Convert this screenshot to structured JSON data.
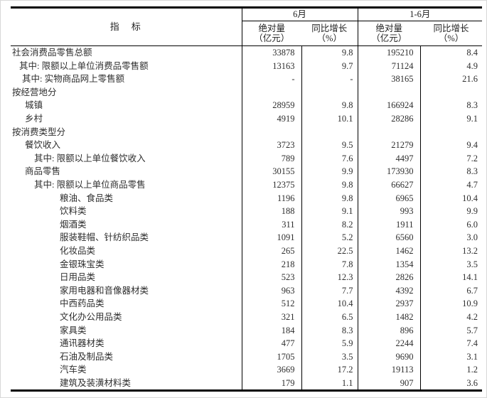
{
  "header": {
    "indicator": "指　标",
    "june_group": "6月",
    "jan_june_group": "1-6月",
    "absolute_label": "绝对量",
    "absolute_unit": "（亿元）",
    "yoy_label": "同比增长",
    "yoy_unit": "（%）"
  },
  "rows": [
    {
      "label": "社会消费品零售总额",
      "indent": 0,
      "june_abs": "33878",
      "june_yoy": "9.8",
      "cum_abs": "195210",
      "cum_yoy": "8.4"
    },
    {
      "label": "其中: 限额以上单位消费品零售额",
      "indent": 1,
      "june_abs": "13163",
      "june_yoy": "9.7",
      "cum_abs": "71124",
      "cum_yoy": "4.9"
    },
    {
      "label": "其中: 实物商品网上零售额",
      "indent": 2,
      "june_abs": "-",
      "june_yoy": "-",
      "cum_abs": "38165",
      "cum_yoy": "21.6"
    },
    {
      "label": "按经营地分",
      "indent": 0,
      "june_abs": "",
      "june_yoy": "",
      "cum_abs": "",
      "cum_yoy": ""
    },
    {
      "label": "城镇",
      "indent": 3,
      "june_abs": "28959",
      "june_yoy": "9.8",
      "cum_abs": "166924",
      "cum_yoy": "8.3"
    },
    {
      "label": "乡村",
      "indent": 3,
      "june_abs": "4919",
      "june_yoy": "10.1",
      "cum_abs": "28286",
      "cum_yoy": "9.1"
    },
    {
      "label": "按消费类型分",
      "indent": 0,
      "june_abs": "",
      "june_yoy": "",
      "cum_abs": "",
      "cum_yoy": ""
    },
    {
      "label": "餐饮收入",
      "indent": 3,
      "june_abs": "3723",
      "june_yoy": "9.5",
      "cum_abs": "21279",
      "cum_yoy": "9.4"
    },
    {
      "label": "其中: 限额以上单位餐饮收入",
      "indent": 4,
      "june_abs": "789",
      "june_yoy": "7.6",
      "cum_abs": "4497",
      "cum_yoy": "7.2"
    },
    {
      "label": "商品零售",
      "indent": 3,
      "june_abs": "30155",
      "june_yoy": "9.9",
      "cum_abs": "173930",
      "cum_yoy": "8.3"
    },
    {
      "label": "其中: 限额以上单位商品零售",
      "indent": 4,
      "june_abs": "12375",
      "june_yoy": "9.8",
      "cum_abs": "66627",
      "cum_yoy": "4.7"
    },
    {
      "label": "粮油、食品类",
      "indent": 5,
      "june_abs": "1196",
      "june_yoy": "9.8",
      "cum_abs": "6965",
      "cum_yoy": "10.4"
    },
    {
      "label": "饮料类",
      "indent": 5,
      "june_abs": "188",
      "june_yoy": "9.1",
      "cum_abs": "993",
      "cum_yoy": "9.9"
    },
    {
      "label": "烟酒类",
      "indent": 5,
      "june_abs": "311",
      "june_yoy": "8.2",
      "cum_abs": "1911",
      "cum_yoy": "6.0"
    },
    {
      "label": "服装鞋帽、针纺织品类",
      "indent": 5,
      "june_abs": "1091",
      "june_yoy": "5.2",
      "cum_abs": "6560",
      "cum_yoy": "3.0"
    },
    {
      "label": "化妆品类",
      "indent": 5,
      "june_abs": "265",
      "june_yoy": "22.5",
      "cum_abs": "1462",
      "cum_yoy": "13.2"
    },
    {
      "label": "金银珠宝类",
      "indent": 5,
      "june_abs": "218",
      "june_yoy": "7.8",
      "cum_abs": "1354",
      "cum_yoy": "3.5"
    },
    {
      "label": "日用品类",
      "indent": 5,
      "june_abs": "523",
      "june_yoy": "12.3",
      "cum_abs": "2826",
      "cum_yoy": "14.1"
    },
    {
      "label": "家用电器和音像器材类",
      "indent": 5,
      "june_abs": "963",
      "june_yoy": "7.7",
      "cum_abs": "4392",
      "cum_yoy": "6.7"
    },
    {
      "label": "中西药品类",
      "indent": 5,
      "june_abs": "512",
      "june_yoy": "10.4",
      "cum_abs": "2937",
      "cum_yoy": "10.9"
    },
    {
      "label": "文化办公用品类",
      "indent": 5,
      "june_abs": "321",
      "june_yoy": "6.5",
      "cum_abs": "1482",
      "cum_yoy": "4.2"
    },
    {
      "label": "家具类",
      "indent": 5,
      "june_abs": "184",
      "june_yoy": "8.3",
      "cum_abs": "896",
      "cum_yoy": "5.7"
    },
    {
      "label": "通讯器材类",
      "indent": 5,
      "june_abs": "477",
      "june_yoy": "5.9",
      "cum_abs": "2244",
      "cum_yoy": "7.4"
    },
    {
      "label": "石油及制品类",
      "indent": 5,
      "june_abs": "1705",
      "june_yoy": "3.5",
      "cum_abs": "9690",
      "cum_yoy": "3.1"
    },
    {
      "label": "汽车类",
      "indent": 5,
      "june_abs": "3669",
      "june_yoy": "17.2",
      "cum_abs": "19113",
      "cum_yoy": "1.2"
    },
    {
      "label": "建筑及装潢材料类",
      "indent": 5,
      "june_abs": "179",
      "june_yoy": "1.1",
      "cum_abs": "907",
      "cum_yoy": "3.6"
    }
  ]
}
